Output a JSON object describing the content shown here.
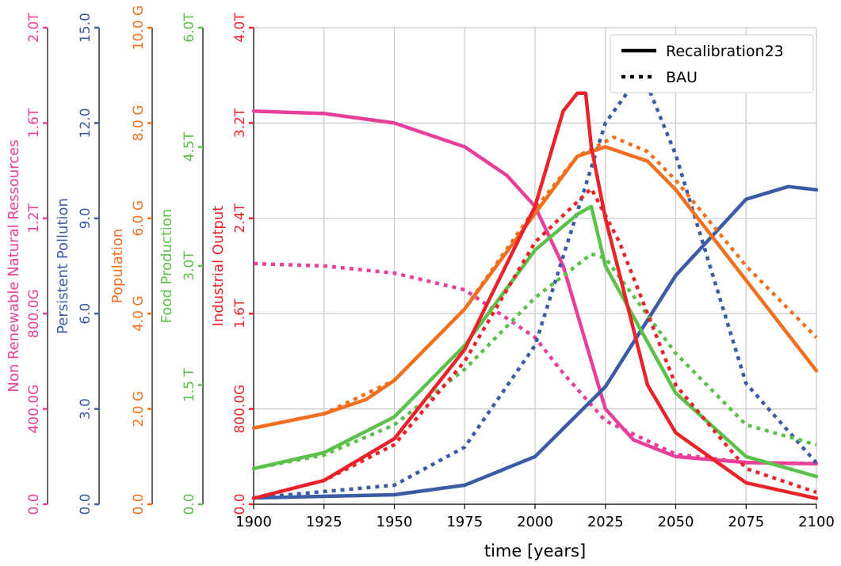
{
  "chart_data": {
    "type": "line",
    "title": "",
    "xlabel": "time [years]",
    "xlim": [
      1900,
      2100
    ],
    "x_ticks": [
      1900,
      1925,
      1950,
      1975,
      2000,
      2025,
      2050,
      2075,
      2100
    ],
    "grid": true,
    "legend": {
      "position": "top-right",
      "entries": [
        {
          "label": "Recalibration23",
          "style": "solid"
        },
        {
          "label": "BAU",
          "style": "dotted"
        }
      ]
    },
    "axes": [
      {
        "id": "nr",
        "label": "Non Renewable Natural Ressources",
        "color": "#e8409a",
        "ylim": [
          0,
          2000
        ],
        "tick_values": [
          0,
          400,
          800,
          1200,
          1600,
          2000
        ],
        "tick_labels": [
          "0.0",
          "400.0G",
          "800.0G",
          "1.2T",
          "1.6T",
          "2.0T"
        ]
      },
      {
        "id": "pp",
        "label": "Persistent Pollution",
        "color": "#3b5ba5",
        "ylim": [
          0,
          15
        ],
        "tick_values": [
          0,
          3,
          6,
          9,
          12,
          15
        ],
        "tick_labels": [
          "0.0",
          "3.0",
          "6.0",
          "9.0",
          "12.0",
          "15.0"
        ]
      },
      {
        "id": "pop",
        "label": "Population",
        "color": "#f07020",
        "ylim": [
          0,
          10
        ],
        "tick_values": [
          0,
          2,
          4,
          6,
          8,
          10
        ],
        "tick_labels": [
          "0.0",
          "2.0 G",
          "4.0 G",
          "6.0 G",
          "8.0 G",
          "10.0 G"
        ]
      },
      {
        "id": "food",
        "label": "Food Production",
        "color": "#5cc14a",
        "ylim": [
          0,
          6
        ],
        "tick_values": [
          0,
          1.5,
          3,
          4.5,
          6
        ],
        "tick_labels": [
          "0.0",
          "1.5 T",
          "3.0T",
          "4.5T",
          "6.0T"
        ]
      },
      {
        "id": "io",
        "label": "Industrial Output",
        "color": "#e8232a",
        "ylim": [
          0,
          4
        ],
        "tick_values": [
          0,
          0.8,
          1.6,
          2.4,
          3.2,
          4.0
        ],
        "tick_labels": [
          "0.0",
          "800.0G",
          "1.6T",
          "2.4T",
          "3.2T",
          "4.0T"
        ]
      }
    ],
    "series": [
      {
        "name": "Non Renewable Natural Ressources",
        "scenario": "Recalibration23",
        "axis": "nr",
        "style": "solid",
        "x": [
          1900,
          1925,
          1950,
          1975,
          1990,
          2000,
          2010,
          2025,
          2035,
          2050,
          2075,
          2100
        ],
        "values": [
          1650,
          1640,
          1600,
          1500,
          1380,
          1250,
          1000,
          400,
          270,
          200,
          175,
          170
        ]
      },
      {
        "name": "Non Renewable Natural Ressources",
        "scenario": "BAU",
        "axis": "nr",
        "style": "dotted",
        "x": [
          1900,
          1925,
          1950,
          1975,
          2000,
          2010,
          2025,
          2050,
          2075,
          2100
        ],
        "values": [
          1010,
          1000,
          970,
          900,
          700,
          550,
          350,
          210,
          175,
          170
        ]
      },
      {
        "name": "Persistent Pollution",
        "scenario": "Recalibration23",
        "axis": "pp",
        "style": "solid",
        "x": [
          1900,
          1950,
          1975,
          2000,
          2025,
          2050,
          2075,
          2090,
          2100
        ],
        "values": [
          0.2,
          0.3,
          0.6,
          1.5,
          3.7,
          7.2,
          9.6,
          10.0,
          9.9
        ]
      },
      {
        "name": "Persistent Pollution",
        "scenario": "BAU",
        "axis": "pp",
        "style": "dotted",
        "x": [
          1900,
          1950,
          1975,
          2000,
          2025,
          2038,
          2050,
          2075,
          2100
        ],
        "values": [
          0.2,
          0.6,
          1.8,
          5.0,
          12.0,
          13.6,
          11.0,
          3.8,
          1.3
        ]
      },
      {
        "name": "Population",
        "scenario": "Recalibration23",
        "axis": "pop",
        "style": "solid",
        "x": [
          1900,
          1925,
          1940,
          1950,
          1975,
          2000,
          2015,
          2025,
          2040,
          2050,
          2075,
          2100
        ],
        "values": [
          1.6,
          1.9,
          2.2,
          2.6,
          4.1,
          6.1,
          7.3,
          7.5,
          7.2,
          6.6,
          4.7,
          2.8
        ]
      },
      {
        "name": "Population",
        "scenario": "BAU",
        "axis": "pop",
        "style": "dotted",
        "x": [
          1900,
          1925,
          1950,
          1975,
          2000,
          2015,
          2028,
          2040,
          2050,
          2075,
          2100
        ],
        "values": [
          1.6,
          1.9,
          2.6,
          4.1,
          6.2,
          7.3,
          7.7,
          7.4,
          6.8,
          5.0,
          3.5
        ]
      },
      {
        "name": "Food Production",
        "scenario": "Recalibration23",
        "axis": "food",
        "style": "solid",
        "x": [
          1900,
          1925,
          1950,
          1975,
          2000,
          2015,
          2020,
          2025,
          2050,
          2075,
          2100
        ],
        "values": [
          0.45,
          0.65,
          1.1,
          2.0,
          3.2,
          3.65,
          3.75,
          3.0,
          1.4,
          0.6,
          0.35
        ]
      },
      {
        "name": "Food Production",
        "scenario": "BAU",
        "axis": "food",
        "style": "dotted",
        "x": [
          1900,
          1925,
          1950,
          1975,
          2000,
          2020,
          2025,
          2050,
          2075,
          2100
        ],
        "values": [
          0.45,
          0.62,
          1.0,
          1.7,
          2.6,
          3.15,
          3.1,
          1.9,
          1.0,
          0.75
        ]
      },
      {
        "name": "Industrial Output",
        "scenario": "Recalibration23",
        "axis": "io",
        "style": "solid",
        "x": [
          1900,
          1925,
          1950,
          1975,
          2000,
          2010,
          2015,
          2018,
          2020,
          2025,
          2040,
          2050,
          2075,
          2100
        ],
        "values": [
          0.05,
          0.2,
          0.55,
          1.3,
          2.5,
          3.3,
          3.45,
          3.45,
          3.0,
          2.4,
          1.0,
          0.6,
          0.18,
          0.05
        ]
      },
      {
        "name": "Industrial Output",
        "scenario": "BAU",
        "axis": "io",
        "style": "dotted",
        "x": [
          1900,
          1925,
          1950,
          1975,
          2000,
          2020,
          2030,
          2050,
          2075,
          2100
        ],
        "values": [
          0.05,
          0.2,
          0.5,
          1.2,
          2.2,
          2.65,
          2.2,
          1.0,
          0.3,
          0.1
        ]
      }
    ]
  }
}
